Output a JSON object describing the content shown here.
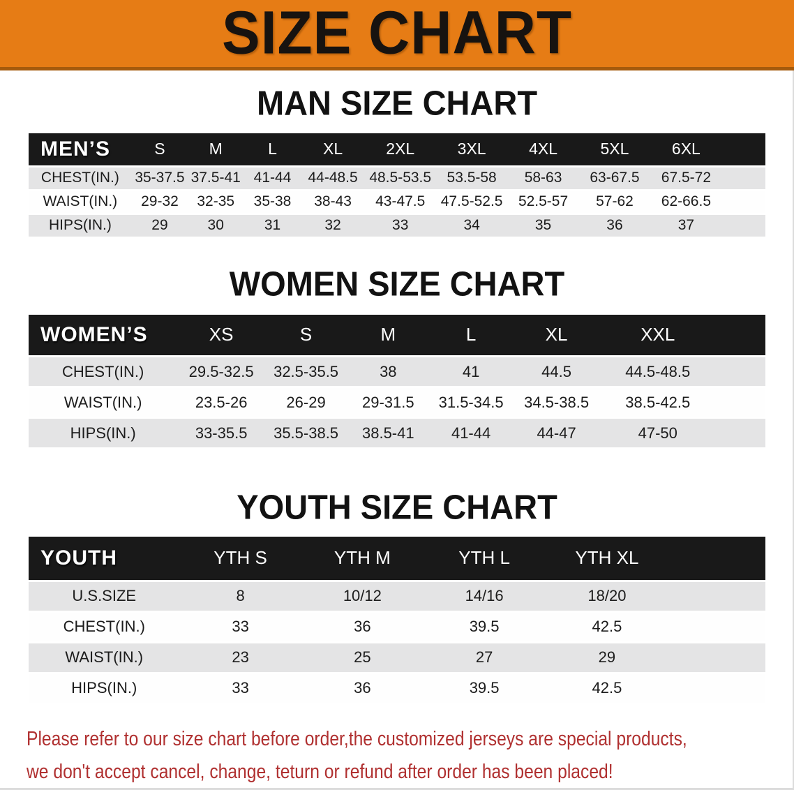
{
  "banner": {
    "title": "SIZE CHART"
  },
  "colors": {
    "banner_bg": "#e67c15",
    "banner_edge": "#a55a0c",
    "header_bg": "#191919",
    "stripe": "#e4e4e5",
    "title": "#121212",
    "text": "#1c1c1c",
    "disclaimer": "#b03030"
  },
  "sections": [
    {
      "id": "men",
      "title": "MAN SIZE CHART",
      "table": {
        "label": "MEN’S",
        "columns": [
          "S",
          "M",
          "L",
          "XL",
          "2XL",
          "3XL",
          "4XL",
          "5XL",
          "6XL"
        ],
        "rows": [
          {
            "label": "CHEST(IN.)",
            "values": [
              "35-37.5",
              "37.5-41",
              "41-44",
              "44-48.5",
              "48.5-53.5",
              "53.5-58",
              "58-63",
              "63-67.5",
              "67.5-72"
            ]
          },
          {
            "label": "WAIST(IN.)",
            "values": [
              "29-32",
              "32-35",
              "35-38",
              "38-43",
              "43-47.5",
              "47.5-52.5",
              "52.5-57",
              "57-62",
              "62-66.5"
            ]
          },
          {
            "label": "HIPS(IN.)",
            "values": [
              "29",
              "30",
              "31",
              "32",
              "33",
              "34",
              "35",
              "36",
              "37"
            ]
          }
        ]
      }
    },
    {
      "id": "women",
      "title": "WOMEN SIZE CHART",
      "table": {
        "label": "WOMEN’S",
        "columns": [
          "XS",
          "S",
          "M",
          "L",
          "XL",
          "XXL"
        ],
        "rows": [
          {
            "label": "CHEST(IN.)",
            "values": [
              "29.5-32.5",
              "32.5-35.5",
              "38",
              "41",
              "44.5",
              "44.5-48.5"
            ]
          },
          {
            "label": "WAIST(IN.)",
            "values": [
              "23.5-26",
              "26-29",
              "29-31.5",
              "31.5-34.5",
              "34.5-38.5",
              "38.5-42.5"
            ]
          },
          {
            "label": "HIPS(IN.)",
            "values": [
              "33-35.5",
              "35.5-38.5",
              "38.5-41",
              "41-44",
              "44-47",
              "47-50"
            ]
          }
        ]
      }
    },
    {
      "id": "youth",
      "title": "YOUTH SIZE CHART",
      "table": {
        "label": "YOUTH",
        "columns": [
          "YTH S",
          "YTH M",
          "YTH L",
          "YTH XL"
        ],
        "rows": [
          {
            "label": "U.S.SIZE",
            "values": [
              "8",
              "10/12",
              "14/16",
              "18/20"
            ]
          },
          {
            "label": "CHEST(IN.)",
            "values": [
              "33",
              "36",
              "39.5",
              "42.5"
            ]
          },
          {
            "label": "WAIST(IN.)",
            "values": [
              "23",
              "25",
              "27",
              "29"
            ]
          },
          {
            "label": "HIPS(IN.)",
            "values": [
              "33",
              "36",
              "39.5",
              "42.5"
            ]
          }
        ]
      }
    }
  ],
  "disclaimer": {
    "line1": "Please refer to our size chart before order,the customized jerseys are special products,",
    "line2": "we don't accept cancel, change, teturn or refund after order has been placed!"
  }
}
